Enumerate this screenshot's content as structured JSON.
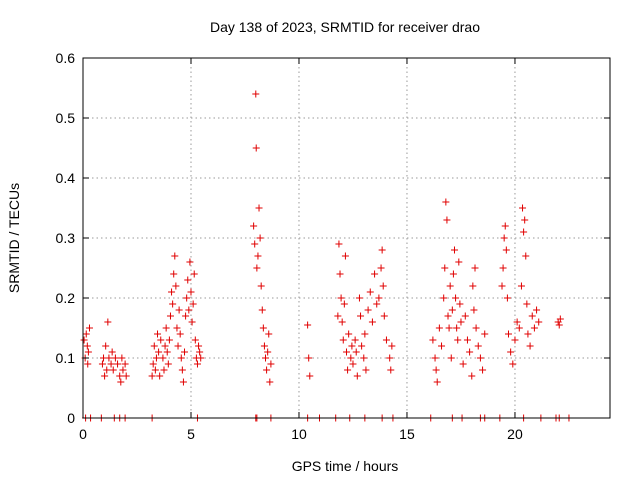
{
  "chart_data": {
    "type": "scatter",
    "title": "Day 138 of 2023, SRMTID for receiver drao",
    "xlabel": "GPS time / hours",
    "ylabel": "SRMTID / TECUs",
    "xlim": [
      0,
      24.4
    ],
    "ylim": [
      0,
      0.6
    ],
    "xticks": [
      0,
      5,
      10,
      15,
      20
    ],
    "yticks": [
      0,
      0.1,
      0.2,
      0.3,
      0.4,
      0.5,
      0.6
    ],
    "grid": true,
    "legend": "none",
    "marker": "+",
    "color": "#e00000",
    "series": [
      {
        "name": "SRMTID",
        "points": [
          [
            0.05,
            0.13
          ],
          [
            0.1,
            0.1
          ],
          [
            0.15,
            0.14
          ],
          [
            0.2,
            0.12
          ],
          [
            0.22,
            0.09
          ],
          [
            0.25,
            0.11
          ],
          [
            0.3,
            0.15
          ],
          [
            0.12,
            0.0
          ],
          [
            0.35,
            0.0
          ],
          [
            0.9,
            0.09
          ],
          [
            0.95,
            0.1
          ],
          [
            1.0,
            0.07
          ],
          [
            1.05,
            0.12
          ],
          [
            1.1,
            0.08
          ],
          [
            1.15,
            0.16
          ],
          [
            1.2,
            0.1
          ],
          [
            1.3,
            0.09
          ],
          [
            1.35,
            0.11
          ],
          [
            1.4,
            0.08
          ],
          [
            1.5,
            0.1
          ],
          [
            1.6,
            0.09
          ],
          [
            1.7,
            0.07
          ],
          [
            1.75,
            0.06
          ],
          [
            1.8,
            0.1
          ],
          [
            1.85,
            0.08
          ],
          [
            1.95,
            0.09
          ],
          [
            2.0,
            0.07
          ],
          [
            0.85,
            0.0
          ],
          [
            1.45,
            0.0
          ],
          [
            1.7,
            0.0
          ],
          [
            1.95,
            0.0
          ],
          [
            3.2,
            0.07
          ],
          [
            3.25,
            0.09
          ],
          [
            3.3,
            0.12
          ],
          [
            3.35,
            0.08
          ],
          [
            3.4,
            0.1
          ],
          [
            3.45,
            0.14
          ],
          [
            3.5,
            0.11
          ],
          [
            3.55,
            0.07
          ],
          [
            3.6,
            0.13
          ],
          [
            3.7,
            0.1
          ],
          [
            3.75,
            0.08
          ],
          [
            3.8,
            0.12
          ],
          [
            3.85,
            0.15
          ],
          [
            3.9,
            0.11
          ],
          [
            3.95,
            0.09
          ],
          [
            4.0,
            0.13
          ],
          [
            4.05,
            0.17
          ],
          [
            4.1,
            0.21
          ],
          [
            4.15,
            0.19
          ],
          [
            4.2,
            0.24
          ],
          [
            4.25,
            0.27
          ],
          [
            4.3,
            0.22
          ],
          [
            4.35,
            0.15
          ],
          [
            4.4,
            0.12
          ],
          [
            4.45,
            0.18
          ],
          [
            4.5,
            0.14
          ],
          [
            4.55,
            0.1
          ],
          [
            4.6,
            0.08
          ],
          [
            4.65,
            0.06
          ],
          [
            4.7,
            0.11
          ],
          [
            4.75,
            0.17
          ],
          [
            4.8,
            0.2
          ],
          [
            4.85,
            0.23
          ],
          [
            4.9,
            0.18
          ],
          [
            4.95,
            0.26
          ],
          [
            5.0,
            0.21
          ],
          [
            5.05,
            0.16
          ],
          [
            5.1,
            0.19
          ],
          [
            5.15,
            0.24
          ],
          [
            5.2,
            0.13
          ],
          [
            5.25,
            0.1
          ],
          [
            5.3,
            0.09
          ],
          [
            5.35,
            0.12
          ],
          [
            5.4,
            0.11
          ],
          [
            5.45,
            0.1
          ],
          [
            3.2,
            0.0
          ],
          [
            5.3,
            0.0
          ],
          [
            7.9,
            0.32
          ],
          [
            7.95,
            0.29
          ],
          [
            8.0,
            0.54
          ],
          [
            8.02,
            0.45
          ],
          [
            8.05,
            0.25
          ],
          [
            8.1,
            0.27
          ],
          [
            8.15,
            0.35
          ],
          [
            8.2,
            0.3
          ],
          [
            8.25,
            0.22
          ],
          [
            8.3,
            0.18
          ],
          [
            8.35,
            0.15
          ],
          [
            8.4,
            0.12
          ],
          [
            8.45,
            0.1
          ],
          [
            8.5,
            0.08
          ],
          [
            8.55,
            0.11
          ],
          [
            8.6,
            0.14
          ],
          [
            8.65,
            0.06
          ],
          [
            8.7,
            0.09
          ],
          [
            8.0,
            0.0
          ],
          [
            8.05,
            0.0
          ],
          [
            8.7,
            0.0
          ],
          [
            10.4,
            0.155
          ],
          [
            10.45,
            0.1
          ],
          [
            10.5,
            0.07
          ],
          [
            10.4,
            0.0
          ],
          [
            10.95,
            0.0
          ],
          [
            11.8,
            0.17
          ],
          [
            11.85,
            0.29
          ],
          [
            11.9,
            0.24
          ],
          [
            11.95,
            0.2
          ],
          [
            12.0,
            0.16
          ],
          [
            12.05,
            0.13
          ],
          [
            12.1,
            0.19
          ],
          [
            12.15,
            0.27
          ],
          [
            12.2,
            0.11
          ],
          [
            12.25,
            0.08
          ],
          [
            12.3,
            0.14
          ],
          [
            12.4,
            0.1
          ],
          [
            12.45,
            0.12
          ],
          [
            12.5,
            0.09
          ],
          [
            12.6,
            0.13
          ],
          [
            12.65,
            0.11
          ],
          [
            12.7,
            0.07
          ],
          [
            12.8,
            0.2
          ],
          [
            12.85,
            0.17
          ],
          [
            12.9,
            0.12
          ],
          [
            13.0,
            0.1
          ],
          [
            13.05,
            0.14
          ],
          [
            13.1,
            0.08
          ],
          [
            13.2,
            0.18
          ],
          [
            13.3,
            0.21
          ],
          [
            13.4,
            0.16
          ],
          [
            13.5,
            0.24
          ],
          [
            13.6,
            0.19
          ],
          [
            13.7,
            0.2
          ],
          [
            13.8,
            0.25
          ],
          [
            13.85,
            0.28
          ],
          [
            13.9,
            0.22
          ],
          [
            13.95,
            0.17
          ],
          [
            14.05,
            0.13
          ],
          [
            14.2,
            0.1
          ],
          [
            14.25,
            0.08
          ],
          [
            14.3,
            0.12
          ],
          [
            11.7,
            0.0
          ],
          [
            12.35,
            0.0
          ],
          [
            13.05,
            0.0
          ],
          [
            13.85,
            0.0
          ],
          [
            14.35,
            0.0
          ],
          [
            16.2,
            0.13
          ],
          [
            16.3,
            0.1
          ],
          [
            16.35,
            0.08
          ],
          [
            16.4,
            0.06
          ],
          [
            16.5,
            0.15
          ],
          [
            16.6,
            0.12
          ],
          [
            16.7,
            0.2
          ],
          [
            16.75,
            0.25
          ],
          [
            16.8,
            0.36
          ],
          [
            16.85,
            0.33
          ],
          [
            16.9,
            0.17
          ],
          [
            16.95,
            0.15
          ],
          [
            17.0,
            0.22
          ],
          [
            17.05,
            0.1
          ],
          [
            17.1,
            0.18
          ],
          [
            17.15,
            0.24
          ],
          [
            17.2,
            0.28
          ],
          [
            17.25,
            0.2
          ],
          [
            17.3,
            0.15
          ],
          [
            17.35,
            0.13
          ],
          [
            17.4,
            0.26
          ],
          [
            17.45,
            0.19
          ],
          [
            17.5,
            0.16
          ],
          [
            17.6,
            0.09
          ],
          [
            17.7,
            0.17
          ],
          [
            17.8,
            0.13
          ],
          [
            17.9,
            0.11
          ],
          [
            18.0,
            0.07
          ],
          [
            18.05,
            0.22
          ],
          [
            18.1,
            0.18
          ],
          [
            18.15,
            0.25
          ],
          [
            18.2,
            0.15
          ],
          [
            18.3,
            0.12
          ],
          [
            18.4,
            0.1
          ],
          [
            18.5,
            0.08
          ],
          [
            18.6,
            0.14
          ],
          [
            16.1,
            0.0
          ],
          [
            17.1,
            0.0
          ],
          [
            17.55,
            0.0
          ],
          [
            18.4,
            0.0
          ],
          [
            18.6,
            0.0
          ],
          [
            19.4,
            0.22
          ],
          [
            19.45,
            0.25
          ],
          [
            19.5,
            0.3
          ],
          [
            19.55,
            0.32
          ],
          [
            19.6,
            0.28
          ],
          [
            19.65,
            0.2
          ],
          [
            19.7,
            0.14
          ],
          [
            19.8,
            0.11
          ],
          [
            19.9,
            0.09
          ],
          [
            20.0,
            0.13
          ],
          [
            20.1,
            0.16
          ],
          [
            20.2,
            0.15
          ],
          [
            20.3,
            0.22
          ],
          [
            20.35,
            0.35
          ],
          [
            20.4,
            0.31
          ],
          [
            20.45,
            0.33
          ],
          [
            20.5,
            0.27
          ],
          [
            20.55,
            0.19
          ],
          [
            20.6,
            0.14
          ],
          [
            20.7,
            0.12
          ],
          [
            20.8,
            0.17
          ],
          [
            20.9,
            0.15
          ],
          [
            21.0,
            0.18
          ],
          [
            21.1,
            0.16
          ],
          [
            22.0,
            0.16
          ],
          [
            22.05,
            0.155
          ],
          [
            22.1,
            0.165
          ],
          [
            19.3,
            0.0
          ],
          [
            20.4,
            0.0
          ],
          [
            21.2,
            0.0
          ],
          [
            21.9,
            0.0
          ],
          [
            22.05,
            0.0
          ],
          [
            22.5,
            0.0
          ]
        ]
      }
    ]
  }
}
